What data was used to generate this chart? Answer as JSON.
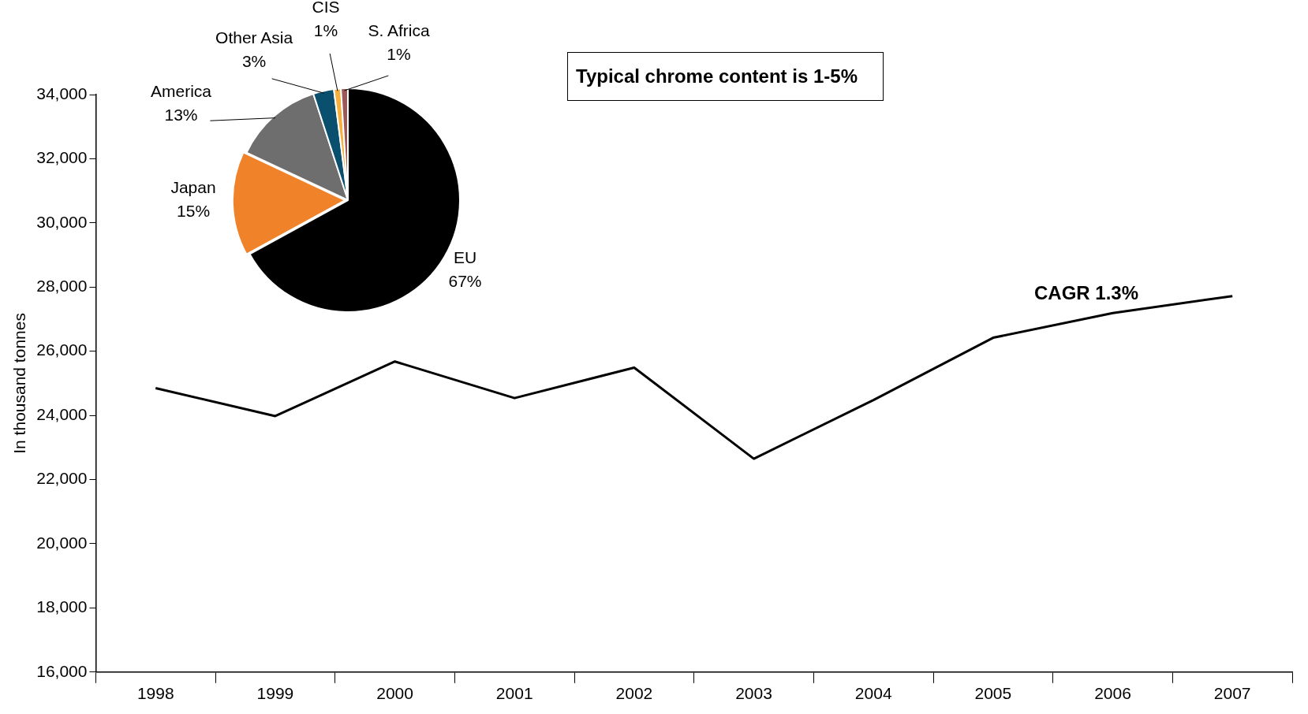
{
  "chart_data": [
    {
      "type": "line",
      "ylabel": "In thousand tonnes",
      "categories": [
        "1998",
        "1999",
        "2000",
        "2001",
        "2002",
        "2003",
        "2004",
        "2005",
        "2006",
        "2007"
      ],
      "values": [
        24850,
        23980,
        25680,
        24540,
        25490,
        22650,
        24480,
        26420,
        27190,
        27720
      ],
      "color": "#000000",
      "ylim": [
        16000,
        34000
      ],
      "yticks": [
        {
          "value": 16000,
          "label": "16,000"
        },
        {
          "value": 18000,
          "label": "18,000"
        },
        {
          "value": 20000,
          "label": "20,000"
        },
        {
          "value": 22000,
          "label": "22,000"
        },
        {
          "value": 24000,
          "label": "24,000"
        },
        {
          "value": 26000,
          "label": "26,000"
        },
        {
          "value": 28000,
          "label": "28,000"
        },
        {
          "value": 30000,
          "label": "30,000"
        },
        {
          "value": 32000,
          "label": "32,000"
        },
        {
          "value": 34000,
          "label": "34,000"
        }
      ],
      "grid": false,
      "legend": false,
      "marker": "none",
      "line_style": "solid",
      "annotations": [
        "Typical chrome content is 1-5%",
        "CAGR 1.3%"
      ]
    },
    {
      "type": "pie",
      "categories": [
        "EU",
        "Japan",
        "America",
        "Other Asia",
        "CIS",
        "S. Africa"
      ],
      "values": [
        67,
        15,
        13,
        3,
        1,
        1
      ],
      "colors": [
        "#000000",
        "#f0822a",
        "#6e6e6e",
        "#0a4f6e",
        "#f5b040",
        "#9a5a5a"
      ],
      "value_labels": [
        "67%",
        "15%",
        "13%",
        "3%",
        "1%",
        "1%"
      ],
      "legend": false
    }
  ]
}
